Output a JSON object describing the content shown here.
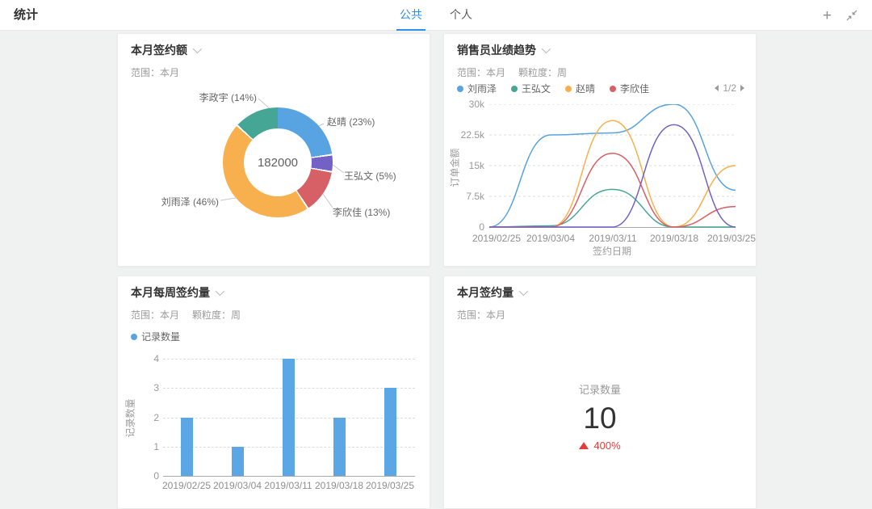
{
  "header": {
    "title": "统计",
    "tabs": [
      {
        "label": "公共",
        "active": true
      },
      {
        "label": "个人",
        "active": false
      }
    ],
    "actions": {
      "add": "+",
      "collapse": "collapse"
    }
  },
  "cards": {
    "contract_amount": {
      "title": "本月签约额",
      "scope": "范围：本月"
    },
    "sales_trend": {
      "title": "销售员业绩趋势",
      "scope": "范围：本月",
      "granularity": "颗粒度：周",
      "pagination": "1/2"
    },
    "weekly_count": {
      "title": "本月每周签约量",
      "scope": "范围：本月",
      "granularity": "颗粒度：周"
    },
    "monthly_count": {
      "title": "本月签约量",
      "scope": "范围：本月"
    }
  },
  "chart_data": [
    {
      "type": "pie",
      "title": "本月签约额",
      "donut": true,
      "center_label": "182000",
      "start_angle": "top",
      "direction": "clockwise",
      "slices": [
        {
          "name": "赵晴",
          "pct": 23,
          "color": "#58a3e2"
        },
        {
          "name": "王弘文",
          "pct": 5,
          "color": "#7461c6"
        },
        {
          "name": "李欣佳",
          "pct": 13,
          "color": "#d75f66"
        },
        {
          "name": "刘雨泽",
          "pct": 46,
          "color": "#f8b04e"
        },
        {
          "name": "李政宇",
          "pct": 14,
          "color": "#45a695"
        }
      ]
    },
    {
      "type": "line",
      "title": "销售员业绩趋势",
      "x": [
        "2019/02/25",
        "2019/03/04",
        "2019/03/11",
        "2019/03/18",
        "2019/03/25"
      ],
      "xlabel": "签约日期",
      "ylabel": "订单金额",
      "ylim": [
        0,
        30000
      ],
      "ytick_values": [
        0,
        7500,
        15000,
        22500,
        30000
      ],
      "ytick_labels": [
        "0",
        "7.5k",
        "15k",
        "22.5k",
        "30k"
      ],
      "grid": "dashed",
      "legend": [
        {
          "name": "刘雨泽",
          "color": "#58a3e2"
        },
        {
          "name": "王弘文",
          "color": "#45a695"
        },
        {
          "name": "赵晴",
          "color": "#f8b04e"
        },
        {
          "name": "李欣佳",
          "color": "#d75f66"
        }
      ],
      "legend_pagination": "1/2",
      "series": [
        {
          "name": "刘雨泽",
          "color": "#58a3e2",
          "values": [
            0,
            22500,
            23000,
            30000,
            9000
          ]
        },
        {
          "name": "王弘文",
          "color": "#45a695",
          "values": [
            0,
            300,
            9200,
            0,
            0
          ]
        },
        {
          "name": "赵晴",
          "color": "#f8b04e",
          "values": [
            0,
            0,
            26000,
            0,
            15000
          ]
        },
        {
          "name": "李欣佳",
          "color": "#d75f66",
          "values": [
            0,
            0,
            18000,
            0,
            5000
          ]
        },
        {
          "name": "",
          "color": "#7461c6",
          "values": [
            0,
            0,
            0,
            25000,
            0
          ]
        }
      ]
    },
    {
      "type": "bar",
      "title": "本月每周签约量",
      "categories": [
        "2019/02/25",
        "2019/03/04",
        "2019/03/11",
        "2019/03/18",
        "2019/03/25"
      ],
      "values": [
        2,
        1,
        4,
        2,
        3
      ],
      "ylabel": "记录数量",
      "ylim": [
        0,
        4
      ],
      "ytick_labels": [
        "0",
        "1",
        "2",
        "3",
        "4"
      ],
      "grid": "dashed",
      "legend": [
        {
          "name": "记录数量",
          "color": "#58a3e2"
        }
      ],
      "bar_color": "#5ba7e6"
    },
    {
      "type": "kpi",
      "title": "本月签约量",
      "label": "记录数量",
      "value": "10",
      "delta": "400%",
      "trend": "up",
      "delta_color": "#e23c3c"
    }
  ]
}
